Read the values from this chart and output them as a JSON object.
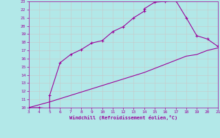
{
  "xlabel": "Windchill (Refroidissement éolien,°C)",
  "xlim": [
    3,
    21
  ],
  "ylim": [
    10,
    23
  ],
  "xticks": [
    3,
    4,
    5,
    6,
    7,
    8,
    9,
    10,
    11,
    12,
    13,
    14,
    15,
    16,
    17,
    18,
    19,
    20,
    21
  ],
  "yticks": [
    10,
    11,
    12,
    13,
    14,
    15,
    16,
    17,
    18,
    19,
    20,
    21,
    22,
    23
  ],
  "bg_color": "#b2e8e8",
  "line_color": "#990099",
  "grid_color": "#c8c8c8",
  "curve1_x": [
    3,
    4,
    5,
    5,
    6,
    7,
    8,
    9,
    10,
    11,
    12,
    13,
    14,
    14,
    15,
    16,
    17,
    18,
    19,
    20,
    21
  ],
  "curve1_y": [
    10,
    10,
    9.9,
    11.5,
    15.5,
    16.5,
    17.1,
    17.9,
    18.2,
    19.3,
    19.9,
    21.0,
    21.8,
    22.1,
    22.9,
    23.0,
    23.1,
    21.0,
    18.8,
    18.4,
    17.5
  ],
  "curve2_x": [
    3,
    4,
    5,
    6,
    7,
    8,
    9,
    10,
    11,
    12,
    13,
    14,
    15,
    16,
    17,
    18,
    19,
    20,
    21
  ],
  "curve2_y": [
    10,
    10.35,
    10.7,
    11.1,
    11.5,
    11.9,
    12.3,
    12.7,
    13.1,
    13.5,
    13.9,
    14.3,
    14.8,
    15.3,
    15.8,
    16.3,
    16.5,
    17.0,
    17.3
  ]
}
